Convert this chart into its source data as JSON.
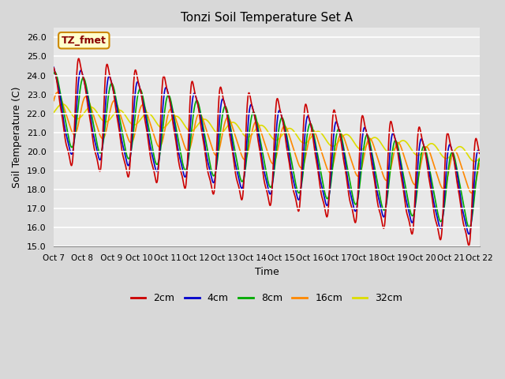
{
  "title": "Tonzi Soil Temperature Set A",
  "xlabel": "Time",
  "ylabel": "Soil Temperature (C)",
  "annotation": "TZ_fmet",
  "ylim": [
    15.0,
    26.5
  ],
  "yticks": [
    15.0,
    16.0,
    17.0,
    18.0,
    19.0,
    20.0,
    21.0,
    22.0,
    23.0,
    24.0,
    25.0,
    26.0
  ],
  "xtick_labels": [
    "Oct 7",
    "Oct 8",
    " Oct 9",
    "Oct 10",
    "Oct 11",
    "Oct 12",
    "Oct 13",
    "Oct 14",
    "Oct 15",
    "Oct 16",
    "Oct 17",
    "Oct 18",
    "Oct 19",
    "Oct 20",
    "Oct 21",
    "Oct 22"
  ],
  "line_colors": [
    "#cc0000",
    "#0000cc",
    "#00aa00",
    "#ff8800",
    "#dddd00"
  ],
  "line_labels": [
    "2cm",
    "4cm",
    "8cm",
    "16cm",
    "32cm"
  ],
  "bg_color": "#d8d8d8",
  "plot_bg_color": "#e8e8e8",
  "annotation_bg": "#ffffcc",
  "annotation_border": "#cc8800",
  "n_points": 1440,
  "n_days": 15
}
